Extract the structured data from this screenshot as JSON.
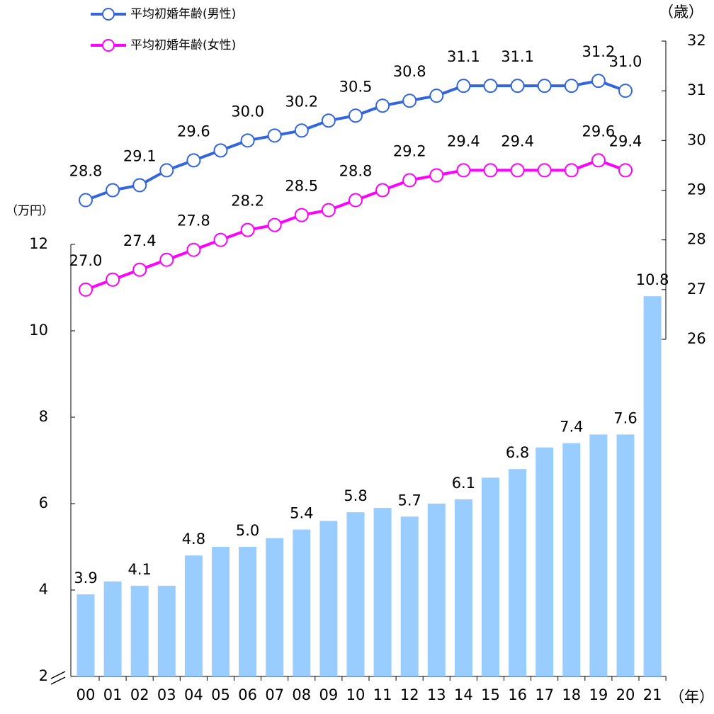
{
  "chart_data": {
    "type": "bar_line",
    "y_unit": "（万円）",
    "y2_unit": "（歳）",
    "x_unit": "（年）",
    "categories": [
      "00",
      "01",
      "02",
      "03",
      "04",
      "05",
      "06",
      "07",
      "08",
      "09",
      "10",
      "11",
      "12",
      "13",
      "14",
      "15",
      "16",
      "17",
      "18",
      "19",
      "20",
      "21"
    ],
    "values": [
      3.9,
      4.2,
      4.1,
      4.1,
      4.8,
      5.0,
      5.0,
      5.2,
      5.4,
      5.6,
      5.8,
      5.9,
      5.7,
      6.0,
      6.1,
      6.6,
      6.8,
      7.3,
      7.4,
      7.6,
      7.6,
      10.8
    ],
    "value_labels": [
      "3.9",
      null,
      "4.1",
      null,
      "4.8",
      null,
      "5.0",
      null,
      "5.4",
      null,
      "5.8",
      null,
      "5.7",
      null,
      "6.1",
      null,
      "6.8",
      null,
      "7.4",
      null,
      "7.6",
      "10.8"
    ],
    "color": "#99ccff",
    "ylim": [
      2,
      12
    ],
    "yticks": [
      2,
      4,
      6,
      8,
      10,
      12
    ],
    "y2lim": [
      26,
      32
    ],
    "y2ticks": [
      26,
      27,
      28,
      29,
      30,
      31,
      32
    ],
    "series": [
      {
        "name": "平均初婚年齢(男性)",
        "color": "#3366dd",
        "axis": "y2",
        "values": [
          28.8,
          29.0,
          29.1,
          29.4,
          29.6,
          29.8,
          30.0,
          30.1,
          30.2,
          30.4,
          30.5,
          30.7,
          30.8,
          30.9,
          31.1,
          31.1,
          31.1,
          31.1,
          31.1,
          31.2,
          31.0,
          null
        ],
        "value_labels": [
          "28.8",
          null,
          "29.1",
          null,
          "29.6",
          null,
          "30.0",
          null,
          "30.2",
          null,
          "30.5",
          null,
          "30.8",
          null,
          "31.1",
          null,
          "31.1",
          null,
          null,
          "31.2",
          "31.0",
          null
        ]
      },
      {
        "name": "平均初婚年齢(女性)",
        "color": "#ff00ff",
        "axis": "y2",
        "values": [
          27.0,
          27.2,
          27.4,
          27.6,
          27.8,
          28.0,
          28.2,
          28.3,
          28.5,
          28.6,
          28.8,
          29.0,
          29.2,
          29.3,
          29.4,
          29.4,
          29.4,
          29.4,
          29.4,
          29.6,
          29.4,
          null
        ],
        "value_labels": [
          "27.0",
          null,
          "27.4",
          null,
          "27.8",
          null,
          "28.2",
          null,
          "28.5",
          null,
          "28.8",
          null,
          "29.2",
          null,
          "29.4",
          null,
          "29.4",
          null,
          null,
          "29.6",
          "29.4",
          null
        ]
      }
    ]
  }
}
